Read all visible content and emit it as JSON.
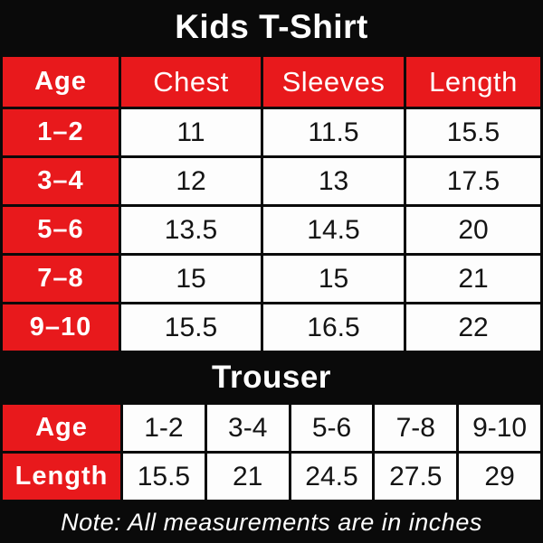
{
  "colors": {
    "background": "#0a0a0a",
    "accent_red": "#e8191c",
    "cell_white": "#fdfdfd",
    "text_white": "#ffffff",
    "text_black": "#141414"
  },
  "note": "Note: All measurements are in inches",
  "chart_data": [
    {
      "type": "table",
      "title": "Kids T-Shirt",
      "columns": [
        "Age",
        "Chest",
        "Sleeves",
        "Length"
      ],
      "rows": [
        [
          "1–2",
          "11",
          "11.5",
          "15.5"
        ],
        [
          "3–4",
          "12",
          "13",
          "17.5"
        ],
        [
          "5–6",
          "13.5",
          "14.5",
          "20"
        ],
        [
          "7–8",
          "15",
          "15",
          "21"
        ],
        [
          "9–10",
          "15.5",
          "16.5",
          "22"
        ]
      ],
      "units": "inches"
    },
    {
      "type": "table",
      "title": "Trouser",
      "rows": [
        [
          "Age",
          "1-2",
          "3-4",
          "5-6",
          "7-8",
          "9-10"
        ],
        [
          "Length",
          "15.5",
          "21",
          "24.5",
          "27.5",
          "29"
        ]
      ],
      "units": "inches"
    }
  ]
}
